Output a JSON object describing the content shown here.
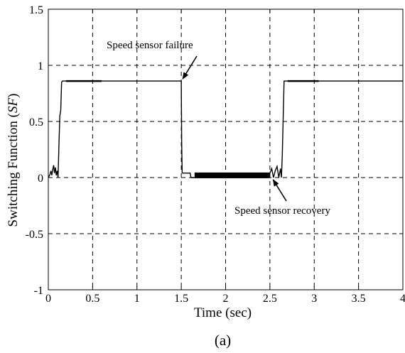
{
  "chart_data": {
    "type": "line",
    "title": "",
    "caption": "(a)",
    "xlabel": "Time (sec)",
    "ylabel_prefix": "Switching Function (",
    "ylabel_italic": "SF",
    "ylabel_suffix": ")",
    "xlim": [
      0,
      4
    ],
    "ylim": [
      -1,
      1.5
    ],
    "x_ticks": [
      0,
      0.5,
      1,
      1.5,
      2,
      2.5,
      3,
      3.5,
      4
    ],
    "x_tick_labels": [
      "0",
      "0.5",
      "1",
      "1.5",
      "2",
      "2.5",
      "3",
      "3.5",
      "4"
    ],
    "y_ticks": [
      -1,
      -0.5,
      0,
      0.5,
      1,
      1.5
    ],
    "y_tick_labels": [
      "-1",
      "-0.5",
      "0",
      "0.5",
      "1",
      "1.5"
    ],
    "grid": true,
    "line_color": "#000000",
    "series": [
      {
        "x": [
          0.0,
          0.02,
          0.03,
          0.04,
          0.05,
          0.06,
          0.07,
          0.08,
          0.09,
          0.1,
          0.11,
          0.12,
          0.13,
          0.14,
          0.15,
          0.16,
          0.18,
          0.25,
          0.6,
          1.0,
          1.49,
          1.5,
          1.505,
          1.51,
          1.6,
          1.61,
          1.63,
          2.45,
          2.5,
          2.52,
          2.54,
          2.56,
          2.58,
          2.6,
          2.62,
          2.63,
          2.64,
          2.66,
          2.7,
          3.0,
          3.5,
          4.0
        ],
        "y": [
          0.0,
          0.03,
          0.06,
          0.02,
          0.07,
          0.11,
          0.04,
          0.09,
          0.02,
          0.06,
          0.0,
          0.3,
          0.55,
          0.6,
          0.85,
          0.86,
          0.86,
          0.86,
          0.86,
          0.86,
          0.86,
          0.86,
          0.3,
          0.04,
          0.04,
          0.0,
          0.0,
          0.0,
          0.04,
          0.08,
          0.0,
          0.06,
          0.1,
          0.0,
          0.08,
          0.0,
          0.2,
          0.86,
          0.86,
          0.86,
          0.86,
          0.86
        ]
      }
    ],
    "thick_segments": [
      {
        "x": [
          1.65,
          2.5
        ],
        "y": 0.02
      },
      {
        "x": [
          0.2,
          0.6
        ],
        "y": 0.86
      },
      {
        "x": [
          2.7,
          3.05
        ],
        "y": 0.86
      }
    ],
    "annotations": [
      {
        "text": "Speed sensor failure",
        "point": [
          1.5,
          0.86
        ]
      },
      {
        "text": "Speed sensor recovery",
        "point": [
          2.52,
          0.0
        ]
      }
    ]
  }
}
